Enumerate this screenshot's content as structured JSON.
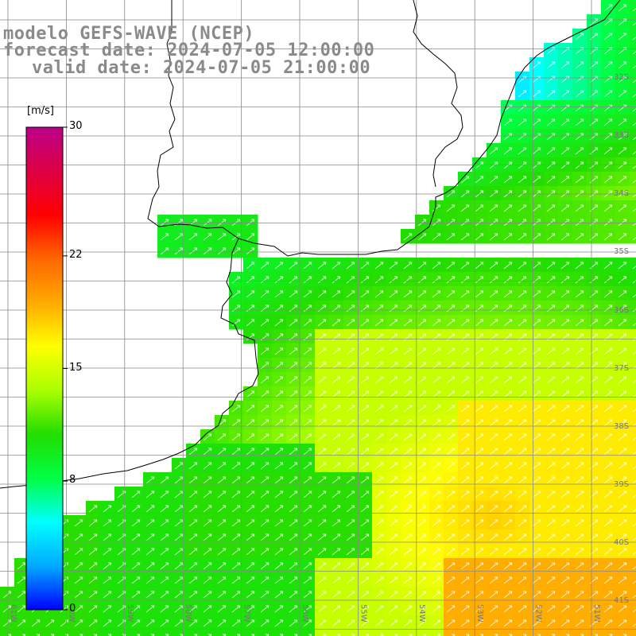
{
  "title": {
    "model": "modelo GEFS-WAVE (NCEP)",
    "forecast": "forecast date: 2024-07-05 12:00:00",
    "valid": "valid date: 2024-07-05 21:00:00"
  },
  "colorbar": {
    "unit": "[m/s]",
    "min": 0,
    "max": 30,
    "ticks": [
      "0",
      "8",
      "15",
      "22",
      "30"
    ],
    "tick_values": [
      0,
      8,
      15,
      22,
      30
    ],
    "stops": [
      "#0000ff",
      "#00aaff",
      "#00ffff",
      "#00ff44",
      "#22dd00",
      "#aaff00",
      "#ffff00",
      "#ffaa00",
      "#ff6600",
      "#ff0000",
      "#dd0044",
      "#bb0088"
    ]
  },
  "map": {
    "lat_labels": [
      "32S",
      "33S",
      "34S",
      "35S",
      "36S",
      "37S",
      "38S",
      "39S",
      "40S",
      "41S"
    ],
    "lon_labels": [
      "61W",
      "60W",
      "59W",
      "58W",
      "57W",
      "56W",
      "55W",
      "54W",
      "53W",
      "52W",
      "51W"
    ],
    "land_color": "#ffffff",
    "grid_color": "#888888",
    "coast_color": "#000000",
    "arrow_color": "#ffffff",
    "wind_direction": "south-westerly flow (arrows pointing north-east)"
  }
}
